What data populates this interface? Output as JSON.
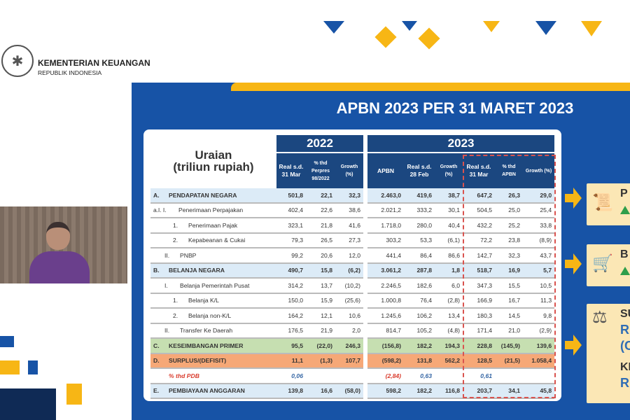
{
  "header": {
    "org_name": "KEMENTERIAN KEUANGAN",
    "org_sub": "REPUBLIK INDONESIA"
  },
  "slide": {
    "title": "APBN 2023 PER 31 MARET 2023",
    "table": {
      "uraian_label": "Uraian",
      "uraian_unit": "(triliun rupiah)",
      "year_2022": "2022",
      "year_2023": "2023",
      "columns_2022": [
        "Real s.d. 31 Mar",
        "% thd Perpres 98/2022",
        "Growth (%)"
      ],
      "columns_2023": [
        "APBN",
        "Real s.d. 28 Feb",
        "Growth (%)",
        "Real s.d. 31 Mar",
        "% thd APBN",
        "Growth (%)"
      ],
      "rows": [
        {
          "prefix": "A.",
          "label": "PENDAPATAN NEGARA",
          "style": "hl",
          "values": [
            "501,8",
            "22,1",
            "32,3",
            "2.463,0",
            "419,6",
            "38,7",
            "647,2",
            "26,3",
            "29,0"
          ]
        },
        {
          "prefix": "a.l. I.",
          "label": "Penerimaan Perpajakan",
          "style": "",
          "values": [
            "402,4",
            "22,6",
            "38,6",
            "2.021,2",
            "333,2",
            "30,1",
            "504,5",
            "25,0",
            "25,4"
          ]
        },
        {
          "prefix": "1.",
          "label": "Penerimaan Pajak",
          "style": "i2",
          "values": [
            "323,1",
            "21,8",
            "41,6",
            "1.718,0",
            "280,0",
            "40,4",
            "432,2",
            "25,2",
            "33,8"
          ]
        },
        {
          "prefix": "2.",
          "label": "Kepabeanan & Cukai",
          "style": "i2",
          "values": [
            "79,3",
            "26,5",
            "27,3",
            "303,2",
            "53,3",
            "(6,1)",
            "72,2",
            "23,8",
            "(8,9)"
          ]
        },
        {
          "prefix": "II.",
          "label": "PNBP",
          "style": "i1",
          "values": [
            "99,2",
            "20,6",
            "12,0",
            "441,4",
            "86,4",
            "86,6",
            "142,7",
            "32,3",
            "43,7"
          ]
        },
        {
          "prefix": "B.",
          "label": "BELANJA NEGARA",
          "style": "hl",
          "values": [
            "490,7",
            "15,8",
            "(6,2)",
            "3.061,2",
            "287,8",
            "1,8",
            "518,7",
            "16,9",
            "5,7"
          ]
        },
        {
          "prefix": "I.",
          "label": "Belanja Pemerintah Pusat",
          "style": "i1",
          "values": [
            "314,2",
            "13,7",
            "(10,2)",
            "2.246,5",
            "182,6",
            "6,0",
            "347,3",
            "15,5",
            "10,5"
          ]
        },
        {
          "prefix": "1.",
          "label": "Belanja K/L",
          "style": "i2",
          "values": [
            "150,0",
            "15,9",
            "(25,6)",
            "1.000,8",
            "76,4",
            "(2,8)",
            "166,9",
            "16,7",
            "11,3"
          ]
        },
        {
          "prefix": "2.",
          "label": "Belanja non-K/L",
          "style": "i2",
          "values": [
            "164,2",
            "12,1",
            "10,6",
            "1.245,6",
            "106,2",
            "13,4",
            "180,3",
            "14,5",
            "9,8"
          ]
        },
        {
          "prefix": "II.",
          "label": "Transfer Ke Daerah",
          "style": "i1",
          "values": [
            "176,5",
            "21,9",
            "2,0",
            "814,7",
            "105,2",
            "(4,8)",
            "171,4",
            "21,0",
            "(2,9)"
          ]
        },
        {
          "prefix": "C.",
          "label": "KESEIMBANGAN PRIMER",
          "style": "green",
          "values": [
            "95,5",
            "(22,0)",
            "246,3",
            "(156,8)",
            "182,2",
            "194,3",
            "228,8",
            "(145,9)",
            "139,6"
          ]
        },
        {
          "prefix": "D.",
          "label": "SURPLUS/(DEFISIT)",
          "style": "orange",
          "values": [
            "11,1",
            "(1,3)",
            "107,7",
            "(598,2)",
            "131,8",
            "562,2",
            "128,5",
            "(21,5)",
            "1.058,4"
          ]
        },
        {
          "prefix": "",
          "label": "% thd PDB",
          "style": "gdp",
          "values": [
            "0,06",
            "",
            "",
            "(2,84)",
            "0,63",
            "",
            "0,61",
            "",
            ""
          ]
        },
        {
          "prefix": "E.",
          "label": "PEMBIAYAAN ANGGARAN",
          "style": "hl",
          "values": [
            "139,8",
            "16,6",
            "(58,0)",
            "598,2",
            "182,2",
            "116,8",
            "203,7",
            "34,1",
            "45,8"
          ]
        }
      ]
    },
    "side_boxes": [
      {
        "icon": "receipt-icon",
        "title": "P",
        "trend": "up"
      },
      {
        "icon": "cart-icon",
        "title": "B",
        "trend": "up"
      },
      {
        "icon": "scale-icon",
        "title": "SU",
        "value": "R",
        "value2": "(C",
        "title2": "KE",
        "value3": "R"
      }
    ],
    "colors": {
      "panel": "#1753a6",
      "accent": "#f7b615",
      "header": "#1b4780",
      "green_row": "#c6dfb1",
      "orange_row": "#f6a877",
      "highlight_row": "#dcebf7"
    }
  }
}
